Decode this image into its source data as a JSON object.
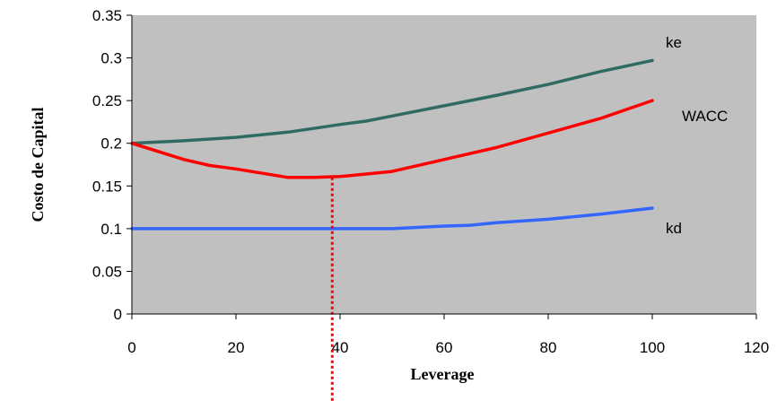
{
  "chart_data": {
    "type": "line",
    "title": "",
    "xlabel": "Leverage",
    "ylabel": "Costo de Capital",
    "xlim": [
      0,
      120
    ],
    "ylim": [
      0,
      0.35
    ],
    "xticks": [
      "0",
      "20",
      "40",
      "60",
      "80",
      "100",
      "120"
    ],
    "yticks": [
      "0",
      "0.05",
      "0.1",
      "0.15",
      "0.2",
      "0.25",
      "0.3",
      "0.35"
    ],
    "grid": false,
    "plot_background": "#c0c0c0",
    "series": [
      {
        "name": "ke",
        "color": "#2f6b63",
        "x": [
          0,
          10,
          20,
          30,
          40,
          45,
          50,
          60,
          70,
          80,
          90,
          100
        ],
        "y": [
          0.2,
          0.203,
          0.207,
          0.213,
          0.222,
          0.226,
          0.232,
          0.244,
          0.256,
          0.269,
          0.284,
          0.297
        ]
      },
      {
        "name": "WACC",
        "color": "#ff0000",
        "x": [
          0,
          10,
          15,
          20,
          30,
          35,
          40,
          45,
          50,
          60,
          70,
          80,
          90,
          100
        ],
        "y": [
          0.2,
          0.181,
          0.174,
          0.17,
          0.16,
          0.16,
          0.161,
          0.164,
          0.167,
          0.181,
          0.195,
          0.212,
          0.229,
          0.25
        ]
      },
      {
        "name": "kd",
        "color": "#3366ff",
        "x": [
          0,
          20,
          40,
          50,
          60,
          65,
          70,
          80,
          90,
          100
        ],
        "y": [
          0.1,
          0.1,
          0.1,
          0.1,
          0.103,
          0.104,
          0.107,
          0.111,
          0.117,
          0.124
        ]
      }
    ],
    "annotation": {
      "type": "vertical-dotted-line",
      "x": 38.5,
      "y_top": 0.16,
      "color": "#ff0000"
    }
  }
}
